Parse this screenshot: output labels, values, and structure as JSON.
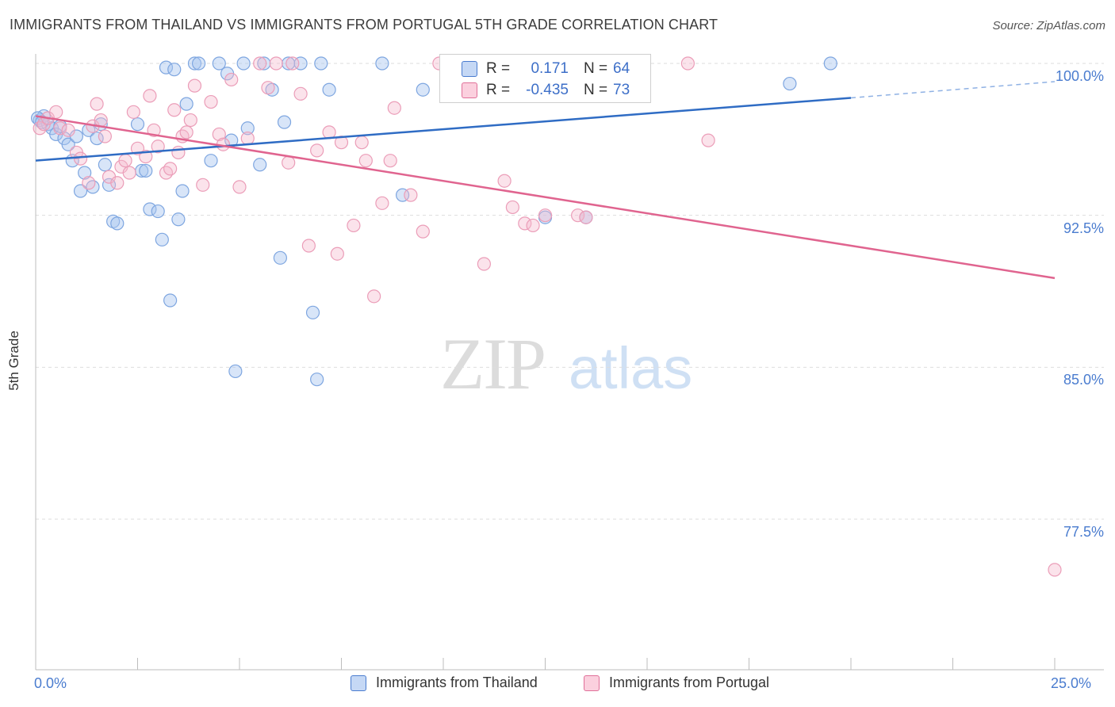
{
  "title": "IMMIGRANTS FROM THAILAND VS IMMIGRANTS FROM PORTUGAL 5TH GRADE CORRELATION CHART",
  "source": "Source: ZipAtlas.com",
  "watermark": "ZIPatlas",
  "colors": {
    "thailand": "#4a7ccf",
    "portugal": "#e07099",
    "thailand_fill": "#a9c6ef",
    "portugal_fill": "#f4b8cc",
    "tick_label": "#4a7ccf"
  },
  "stats": {
    "thailand": {
      "r_label": "R =",
      "r_value": "0.171",
      "n_label": "N =",
      "n_value": "64"
    },
    "portugal": {
      "r_label": "R =",
      "r_value": "-0.435",
      "n_label": "N =",
      "n_value": "73"
    }
  },
  "chart_data": {
    "type": "scatter",
    "title": "IMMIGRANTS FROM THAILAND VS IMMIGRANTS FROM PORTUGAL 5TH GRADE CORRELATION CHART",
    "xlabel": "",
    "ylabel": "5th Grade",
    "xlim": [
      0,
      25
    ],
    "ylim": [
      70,
      101.5
    ],
    "x_tick_labels": [
      "0.0%",
      "25.0%"
    ],
    "y_ticks": [
      77.5,
      85.0,
      92.5,
      100.0
    ],
    "y_tick_labels": [
      "77.5%",
      "85.0%",
      "92.5%",
      "100.0%"
    ],
    "grid": "horizontal dashed",
    "legend_placement": "bottom-center",
    "series": [
      {
        "name": "Immigrants from Thailand",
        "color": "#4a7ccf",
        "trend": {
          "x0": 0,
          "y0": 95.2,
          "x1": 20,
          "y1": 98.3,
          "dashed_to_x": 25,
          "dashed_to_y": 99.1
        },
        "points": [
          [
            0.1,
            97.2
          ],
          [
            0.2,
            97.4
          ],
          [
            0.3,
            97.0
          ],
          [
            0.4,
            96.8
          ],
          [
            0.5,
            96.5
          ],
          [
            0.6,
            96.9
          ],
          [
            0.7,
            96.3
          ],
          [
            0.8,
            96.0
          ],
          [
            0.9,
            95.2
          ],
          [
            1.0,
            96.4
          ],
          [
            1.1,
            93.7
          ],
          [
            1.2,
            94.6
          ],
          [
            1.3,
            96.7
          ],
          [
            1.4,
            93.9
          ],
          [
            1.5,
            96.3
          ],
          [
            1.6,
            97.0
          ],
          [
            1.7,
            95.0
          ],
          [
            1.8,
            94.0
          ],
          [
            1.9,
            92.2
          ],
          [
            2.0,
            92.1
          ],
          [
            2.5,
            97.0
          ],
          [
            2.6,
            94.7
          ],
          [
            2.7,
            94.7
          ],
          [
            2.8,
            92.8
          ],
          [
            3.0,
            92.7
          ],
          [
            3.1,
            91.3
          ],
          [
            3.2,
            99.8
          ],
          [
            3.3,
            88.3
          ],
          [
            3.4,
            99.7
          ],
          [
            3.5,
            92.3
          ],
          [
            3.6,
            93.7
          ],
          [
            3.7,
            98.0
          ],
          [
            3.9,
            100.0
          ],
          [
            4.0,
            100.0
          ],
          [
            4.3,
            95.2
          ],
          [
            4.5,
            100.0
          ],
          [
            4.7,
            99.5
          ],
          [
            4.8,
            96.2
          ],
          [
            4.9,
            84.8
          ],
          [
            5.1,
            100.0
          ],
          [
            5.2,
            96.8
          ],
          [
            5.5,
            95.0
          ],
          [
            5.6,
            100.0
          ],
          [
            5.8,
            98.7
          ],
          [
            6.0,
            90.4
          ],
          [
            6.1,
            97.1
          ],
          [
            6.2,
            100.0
          ],
          [
            6.5,
            100.0
          ],
          [
            6.8,
            87.7
          ],
          [
            6.9,
            84.4
          ],
          [
            7.0,
            100.0
          ],
          [
            7.2,
            98.7
          ],
          [
            8.5,
            100.0
          ],
          [
            9.0,
            93.5
          ],
          [
            9.5,
            98.7
          ],
          [
            10.5,
            100.0
          ],
          [
            11.0,
            100.0
          ],
          [
            12.0,
            100.0
          ],
          [
            12.5,
            92.4
          ],
          [
            13.5,
            92.4
          ],
          [
            18.5,
            99.0
          ],
          [
            19.5,
            100.0
          ],
          [
            0.05,
            97.3
          ],
          [
            0.15,
            97.1
          ]
        ]
      },
      {
        "name": "Immigrants from Portugal",
        "color": "#e07099",
        "trend": {
          "x0": 0,
          "y0": 97.4,
          "x1": 25,
          "y1": 89.4
        },
        "points": [
          [
            0.1,
            96.8
          ],
          [
            0.2,
            97.0
          ],
          [
            0.3,
            97.3
          ],
          [
            0.5,
            97.6
          ],
          [
            0.6,
            96.8
          ],
          [
            0.8,
            96.7
          ],
          [
            1.0,
            95.6
          ],
          [
            1.1,
            95.3
          ],
          [
            1.3,
            94.1
          ],
          [
            1.4,
            96.9
          ],
          [
            1.5,
            98.0
          ],
          [
            1.6,
            97.2
          ],
          [
            1.7,
            96.4
          ],
          [
            1.8,
            94.4
          ],
          [
            2.0,
            94.1
          ],
          [
            2.1,
            94.9
          ],
          [
            2.2,
            95.2
          ],
          [
            2.3,
            94.6
          ],
          [
            2.4,
            97.6
          ],
          [
            2.5,
            95.8
          ],
          [
            2.7,
            95.4
          ],
          [
            2.8,
            98.4
          ],
          [
            2.9,
            96.7
          ],
          [
            3.0,
            95.9
          ],
          [
            3.2,
            94.6
          ],
          [
            3.3,
            94.8
          ],
          [
            3.4,
            97.7
          ],
          [
            3.5,
            95.6
          ],
          [
            3.6,
            96.4
          ],
          [
            3.7,
            96.6
          ],
          [
            3.8,
            97.2
          ],
          [
            3.9,
            98.9
          ],
          [
            4.1,
            94.0
          ],
          [
            4.3,
            98.1
          ],
          [
            4.5,
            96.5
          ],
          [
            4.6,
            96.0
          ],
          [
            4.8,
            99.2
          ],
          [
            5.0,
            93.9
          ],
          [
            5.2,
            96.3
          ],
          [
            5.5,
            100.0
          ],
          [
            5.7,
            98.8
          ],
          [
            5.9,
            100.0
          ],
          [
            6.2,
            95.1
          ],
          [
            6.3,
            100.0
          ],
          [
            6.5,
            98.5
          ],
          [
            6.7,
            91.0
          ],
          [
            6.9,
            95.7
          ],
          [
            7.2,
            96.6
          ],
          [
            7.4,
            90.6
          ],
          [
            7.5,
            96.1
          ],
          [
            7.8,
            92.0
          ],
          [
            8.0,
            96.1
          ],
          [
            8.1,
            95.2
          ],
          [
            8.3,
            88.5
          ],
          [
            8.5,
            93.1
          ],
          [
            8.7,
            95.2
          ],
          [
            8.8,
            97.8
          ],
          [
            9.2,
            93.5
          ],
          [
            9.5,
            91.7
          ],
          [
            9.9,
            100.0
          ],
          [
            10.2,
            100.0
          ],
          [
            11.0,
            90.1
          ],
          [
            11.5,
            94.2
          ],
          [
            11.7,
            92.9
          ],
          [
            12.0,
            92.1
          ],
          [
            12.2,
            92.0
          ],
          [
            12.5,
            92.5
          ],
          [
            13.0,
            100.0
          ],
          [
            13.3,
            92.5
          ],
          [
            13.5,
            92.4
          ],
          [
            16.0,
            100.0
          ],
          [
            16.5,
            96.2
          ],
          [
            25.0,
            75.0
          ]
        ]
      }
    ]
  },
  "legend": {
    "thailand_label": "Immigrants from Thailand",
    "portugal_label": "Immigrants from Portugal"
  }
}
